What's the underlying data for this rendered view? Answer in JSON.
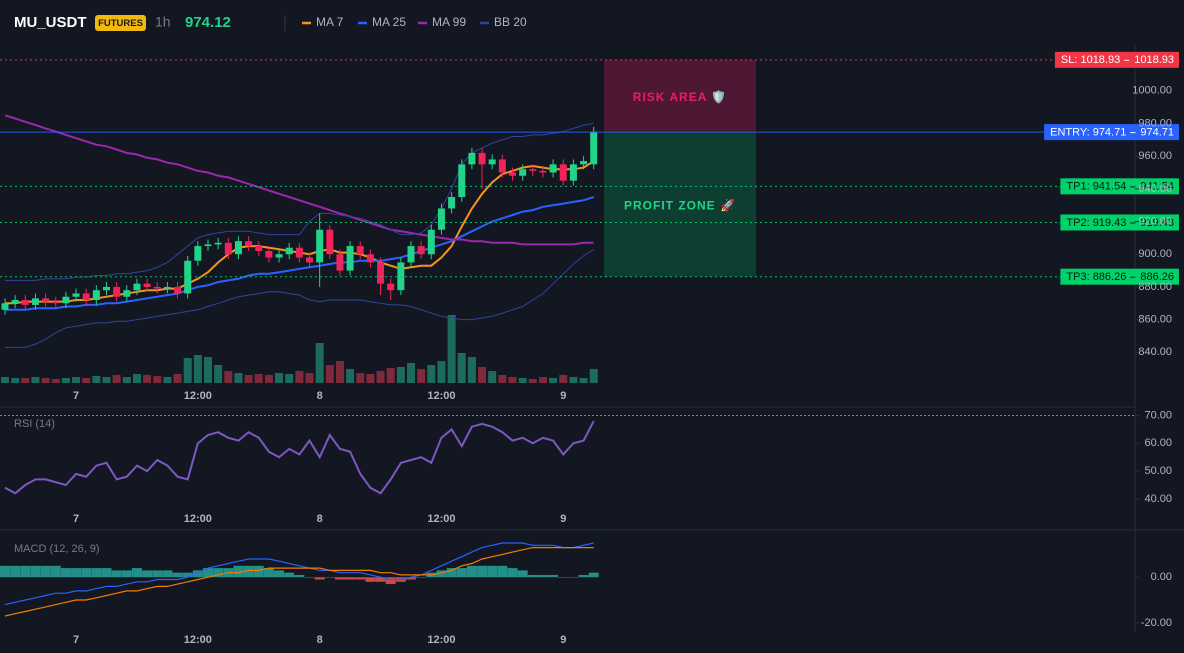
{
  "header": {
    "symbol": "MU_USDT",
    "badge": "FUTURES",
    "interval": "1h",
    "price": "974.12"
  },
  "chart_data": [
    {
      "type": "candlestick",
      "categories": [
        null,
        null,
        null,
        null,
        null,
        null,
        null,
        "7",
        null,
        null,
        null,
        null,
        null,
        null,
        null,
        null,
        null,
        null,
        null,
        "12:00",
        null,
        null,
        null,
        null,
        null,
        null,
        null,
        null,
        null,
        null,
        null,
        "8",
        null,
        null,
        null,
        null,
        null,
        null,
        null,
        null,
        null,
        null,
        null,
        "12:00",
        null,
        null,
        null,
        null,
        null,
        null,
        null,
        null,
        null,
        null,
        null,
        "9",
        null,
        null,
        null
      ],
      "open": [
        866,
        870,
        872,
        869,
        873,
        871,
        870,
        874,
        876,
        872,
        878,
        880,
        874,
        878,
        882,
        880,
        879,
        880,
        876,
        896,
        905,
        906,
        907,
        900,
        908,
        905,
        902,
        898,
        900,
        904,
        898,
        895,
        915,
        900,
        890,
        905,
        900,
        895,
        882,
        878,
        895,
        905,
        900,
        915,
        928,
        935,
        955,
        962,
        955,
        958,
        950,
        948,
        952,
        951,
        950,
        955,
        945,
        955,
        955
      ],
      "high": [
        873,
        875,
        875,
        876,
        876,
        874,
        877,
        879,
        879,
        881,
        883,
        883,
        881,
        885,
        885,
        883,
        883,
        883,
        899,
        908,
        909,
        910,
        910,
        911,
        911,
        908,
        905,
        903,
        907,
        907,
        901,
        925,
        918,
        903,
        908,
        908,
        903,
        898,
        885,
        898,
        908,
        908,
        918,
        931,
        938,
        958,
        965,
        965,
        961,
        961,
        953,
        955,
        955,
        954,
        958,
        958,
        958,
        960,
        978
      ],
      "low": [
        863,
        867,
        866,
        866,
        868,
        867,
        867,
        871,
        869,
        869,
        875,
        871,
        871,
        875,
        877,
        876,
        876,
        873,
        873,
        893,
        902,
        903,
        897,
        897,
        902,
        899,
        895,
        895,
        897,
        895,
        892,
        880,
        897,
        887,
        887,
        897,
        892,
        875,
        872,
        875,
        892,
        897,
        897,
        912,
        925,
        932,
        952,
        940,
        952,
        947,
        945,
        945,
        948,
        947,
        947,
        942,
        942,
        952,
        952
      ],
      "close": [
        870,
        872,
        869,
        873,
        871,
        870,
        874,
        876,
        872,
        878,
        880,
        874,
        878,
        882,
        880,
        879,
        880,
        876,
        896,
        905,
        906,
        907,
        900,
        908,
        905,
        902,
        898,
        900,
        904,
        898,
        895,
        915,
        900,
        890,
        905,
        900,
        895,
        882,
        878,
        895,
        905,
        900,
        915,
        928,
        935,
        955,
        962,
        955,
        958,
        950,
        948,
        952,
        951,
        950,
        955,
        945,
        955,
        957,
        975
      ],
      "volume": [
        6,
        5,
        5,
        6,
        5,
        4,
        5,
        6,
        5,
        7,
        6,
        8,
        6,
        9,
        8,
        7,
        6,
        9,
        25,
        28,
        26,
        18,
        12,
        10,
        8,
        9,
        8,
        10,
        9,
        12,
        10,
        40,
        18,
        22,
        14,
        10,
        9,
        12,
        15,
        16,
        20,
        14,
        18,
        22,
        68,
        30,
        26,
        16,
        12,
        8,
        6,
        5,
        4,
        6,
        5,
        8,
        6,
        5,
        14
      ],
      "up_color": "#22d38a",
      "down_color": "#f0245a",
      "series": [
        {
          "name": "MA 7",
          "color": "#f7931a",
          "values": [
            870,
            870,
            871,
            871,
            871,
            871,
            871,
            872,
            872,
            873,
            874,
            875,
            876,
            877,
            878,
            878,
            879,
            879,
            882,
            885,
            889,
            895,
            900,
            904,
            905,
            905,
            904,
            903,
            902,
            901,
            900,
            902,
            903,
            901,
            901,
            900,
            898,
            895,
            893,
            891,
            892,
            893,
            893,
            898,
            905,
            917,
            928,
            937,
            944,
            949,
            951,
            953,
            954,
            953,
            952,
            952,
            952,
            953,
            957
          ]
        },
        {
          "name": "MA 25",
          "color": "#2962ff",
          "values": [
            866,
            866,
            866,
            867,
            867,
            867,
            868,
            868,
            869,
            869,
            870,
            870,
            871,
            872,
            873,
            874,
            875,
            876,
            878,
            880,
            881,
            883,
            884,
            885,
            887,
            888,
            888,
            889,
            890,
            891,
            892,
            893,
            894,
            895,
            895,
            896,
            896,
            896,
            897,
            898,
            900,
            902,
            904,
            906,
            908,
            911,
            914,
            917,
            920,
            922,
            924,
            926,
            927,
            929,
            930,
            931,
            932,
            933,
            935
          ]
        },
        {
          "name": "MA 99",
          "color": "#9c27b0",
          "values": [
            985,
            983,
            981,
            979,
            977,
            975,
            973,
            971,
            969,
            967,
            966,
            964,
            962,
            961,
            959,
            958,
            956,
            955,
            953,
            951,
            950,
            948,
            947,
            945,
            943,
            941,
            939,
            937,
            935,
            933,
            931,
            929,
            927,
            925,
            923,
            921,
            919,
            917,
            915,
            914,
            913,
            912,
            911,
            910,
            909,
            909,
            908,
            908,
            907,
            907,
            907,
            906,
            906,
            906,
            906,
            906,
            906,
            907,
            907
          ]
        },
        {
          "name": "BB 20",
          "color": "#2f4699",
          "upper": [
            884,
            884,
            884,
            884,
            885,
            885,
            885,
            886,
            886,
            887,
            887,
            888,
            888,
            889,
            890,
            892,
            895,
            900,
            905,
            910,
            912,
            913,
            914,
            914,
            914,
            913,
            912,
            912,
            912,
            912,
            920,
            925,
            925,
            924,
            923,
            922,
            920,
            918,
            915,
            912,
            912,
            913,
            918,
            928,
            940,
            955,
            962,
            965,
            968,
            970,
            972,
            972,
            973,
            973,
            974,
            975,
            977,
            979,
            980
          ],
          "lower": [
            843,
            843,
            843,
            845,
            848,
            852,
            855,
            856,
            857,
            858,
            858,
            859,
            859,
            860,
            861,
            862,
            863,
            864,
            865,
            866,
            868,
            870,
            872,
            874,
            875,
            876,
            877,
            877,
            876,
            875,
            872,
            871,
            872,
            872,
            872,
            872,
            871,
            870,
            869,
            869,
            868,
            866,
            864,
            862,
            861,
            860,
            860,
            861,
            862,
            864,
            866,
            868,
            872,
            876,
            882,
            888,
            894,
            899,
            903
          ]
        }
      ],
      "levels": [
        {
          "label": "SL: 1018.93",
          "value": 1018.93,
          "color": "#f23645",
          "text_color": "#ffffff"
        },
        {
          "label": "ENTRY: 974.71",
          "value": 974.71,
          "color": "#2962ff",
          "text_color": "#ffffff"
        },
        {
          "label": "TP1: 941.54",
          "value": 941.54,
          "color": "#00d26a",
          "text_color": "#0b1a12"
        },
        {
          "label": "TP2: 919.43",
          "value": 919.43,
          "color": "#00d26a",
          "text_color": "#0b1a12"
        },
        {
          "label": "TP3: 886.26",
          "value": 886.26,
          "color": "#00d26a",
          "text_color": "#0b1a12"
        }
      ],
      "zone_labels": [
        "RISK AREA 🛡️",
        "PROFIT ZONE 🚀"
      ],
      "ylim": [
        820,
        1028
      ],
      "yticks": [
        {
          "value": 840,
          "label": "840.00"
        },
        {
          "value": 860,
          "label": "860.00"
        },
        {
          "value": 880,
          "label": "880.00"
        },
        {
          "value": 900,
          "label": "900.00"
        },
        {
          "value": 920,
          "label": "920.00"
        },
        {
          "value": 940,
          "label": "940.00"
        },
        {
          "value": 960,
          "label": "960.00"
        },
        {
          "value": 980,
          "label": "980.00"
        },
        {
          "value": 1000,
          "label": "1000.00"
        }
      ]
    },
    {
      "type": "line",
      "title": "RSI (14)",
      "categories": [
        null,
        null,
        null,
        null,
        null,
        null,
        null,
        "7",
        null,
        null,
        null,
        null,
        null,
        null,
        null,
        null,
        null,
        null,
        null,
        "12:00",
        null,
        null,
        null,
        null,
        null,
        null,
        null,
        null,
        null,
        null,
        null,
        "8",
        null,
        null,
        null,
        null,
        null,
        null,
        null,
        null,
        null,
        null,
        null,
        "12:00",
        null,
        null,
        null,
        null,
        null,
        null,
        null,
        null,
        null,
        null,
        null,
        "9",
        null,
        null,
        null
      ],
      "series": [
        {
          "color": "#7e57c2",
          "values": [
            44,
            42,
            45,
            47,
            47,
            46,
            45,
            49,
            48,
            52,
            53,
            47,
            48,
            52,
            50,
            54,
            52,
            48,
            47,
            60,
            63,
            64,
            62,
            61,
            64,
            62,
            57,
            55,
            58,
            56,
            61,
            55,
            63,
            58,
            57,
            49,
            44,
            42,
            47,
            53,
            54,
            55,
            53,
            62,
            65,
            59,
            66,
            67,
            66,
            64,
            61,
            62,
            60,
            62,
            61,
            56,
            60,
            61,
            68
          ]
        }
      ],
      "reference": 70,
      "ylim": [
        36,
        72
      ],
      "yticks": [
        {
          "value": 70,
          "label": "70.00"
        },
        {
          "value": 60,
          "label": "60.00"
        },
        {
          "value": 50,
          "label": "50.00"
        },
        {
          "value": 40,
          "label": "40.00"
        }
      ]
    },
    {
      "type": "macd",
      "title": "MACD (12, 26, 9)",
      "categories": [
        null,
        null,
        null,
        null,
        null,
        null,
        null,
        "7",
        null,
        null,
        null,
        null,
        null,
        null,
        null,
        null,
        null,
        null,
        null,
        "12:00",
        null,
        null,
        null,
        null,
        null,
        null,
        null,
        null,
        null,
        null,
        null,
        "8",
        null,
        null,
        null,
        null,
        null,
        null,
        null,
        null,
        null,
        null,
        null,
        "12:00",
        null,
        null,
        null,
        null,
        null,
        null,
        null,
        null,
        null,
        null,
        null,
        "9",
        null,
        null,
        null
      ],
      "histogram": [
        5,
        5,
        5,
        5,
        5,
        5,
        4,
        4,
        4,
        4,
        4,
        3,
        3,
        4,
        3,
        3,
        3,
        2,
        2,
        3,
        4,
        4,
        4,
        5,
        5,
        5,
        4,
        3,
        2,
        1,
        0,
        -1,
        0,
        -1,
        -1,
        -1,
        -2,
        -2,
        -3,
        -2,
        -1,
        0,
        2,
        3,
        4,
        4,
        5,
        5,
        5,
        5,
        4,
        3,
        1,
        1,
        1,
        0,
        0,
        1,
        2
      ],
      "up_color": "#26a69a",
      "down_color": "#ef5350",
      "series": [
        {
          "color": "#2962ff",
          "values": [
            -12,
            -11,
            -10,
            -9,
            -8,
            -7,
            -7,
            -6,
            -6,
            -5,
            -4,
            -4,
            -3,
            -2,
            -2,
            -1,
            -1,
            -1,
            0,
            2,
            4,
            5,
            6,
            7,
            8,
            8,
            8,
            7,
            6,
            5,
            4,
            3,
            3,
            2,
            2,
            2,
            1,
            0,
            -1,
            -1,
            0,
            1,
            3,
            5,
            7,
            9,
            11,
            13,
            14,
            15,
            15,
            15,
            14,
            14,
            14,
            13,
            13,
            14,
            15
          ]
        },
        {
          "color": "#f57c00",
          "values": [
            -17,
            -16,
            -15,
            -14,
            -13,
            -12,
            -11,
            -10,
            -10,
            -9,
            -8,
            -7,
            -6,
            -6,
            -5,
            -4,
            -4,
            -3,
            -2,
            -1,
            0,
            1,
            2,
            2,
            3,
            3,
            4,
            4,
            4,
            4,
            4,
            4,
            3,
            3,
            3,
            3,
            3,
            2,
            2,
            1,
            1,
            1,
            1,
            2,
            3,
            5,
            6,
            8,
            9,
            10,
            11,
            12,
            13,
            13,
            13,
            13,
            13,
            13,
            13
          ]
        }
      ],
      "ylim": [
        -24,
        18.5
      ],
      "yticks": [
        {
          "value": 0,
          "label": "0.00"
        },
        {
          "value": -20,
          "label": "-20.00"
        }
      ]
    }
  ]
}
